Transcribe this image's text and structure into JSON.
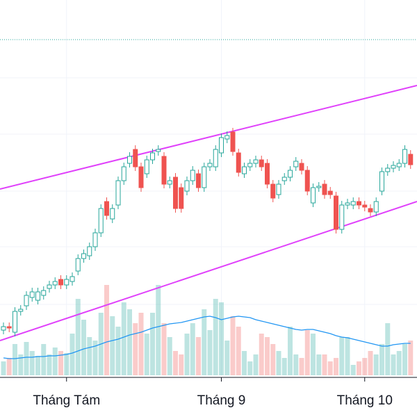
{
  "chart_data": {
    "type": "candlestick",
    "categories": [
      null,
      null,
      null,
      null,
      null,
      null,
      null,
      null,
      null,
      null,
      null,
      "Tháng Tám",
      null,
      null,
      null,
      null,
      null,
      null,
      null,
      null,
      null,
      null,
      null,
      null,
      null,
      null,
      null,
      null,
      null,
      null,
      null,
      null,
      null,
      null,
      null,
      null,
      null,
      null,
      "Tháng 9",
      null,
      null,
      null,
      null,
      null,
      null,
      null,
      null,
      null,
      null,
      null,
      null,
      null,
      null,
      null,
      null,
      null,
      null,
      null,
      null,
      null,
      null,
      null,
      null,
      "Tháng 10",
      null,
      null,
      null,
      null,
      null,
      null,
      null,
      null
    ],
    "open": [
      65,
      70,
      62,
      92,
      100,
      112,
      108,
      115,
      125,
      130,
      138,
      130,
      135,
      150,
      168,
      172,
      185,
      205,
      250,
      225,
      245,
      280,
      305,
      325,
      300,
      290,
      310,
      322,
      315,
      275,
      285,
      270,
      265,
      280,
      290,
      270,
      300,
      300,
      320,
      340,
      350,
      320,
      290,
      300,
      305,
      310,
      305,
      275,
      260,
      280,
      285,
      300,
      305,
      295,
      248,
      270,
      275,
      265,
      258,
      210,
      245,
      245,
      250,
      245,
      240,
      235,
      265,
      293,
      298,
      300,
      305,
      318
    ],
    "close": [
      70,
      68,
      92,
      95,
      115,
      120,
      120,
      122,
      130,
      135,
      130,
      138,
      142,
      168,
      175,
      185,
      205,
      240,
      230,
      240,
      280,
      300,
      315,
      300,
      270,
      310,
      320,
      325,
      275,
      280,
      240,
      240,
      280,
      295,
      270,
      300,
      305,
      325,
      342,
      345,
      322,
      292,
      300,
      305,
      310,
      300,
      275,
      255,
      275,
      285,
      295,
      308,
      295,
      265,
      270,
      272,
      260,
      260,
      210,
      245,
      248,
      250,
      245,
      242,
      235,
      250,
      293,
      298,
      302,
      305,
      325,
      303
    ],
    "high": [
      76,
      76,
      98,
      101,
      121,
      126,
      126,
      128,
      136,
      141,
      144,
      144,
      148,
      174,
      181,
      191,
      211,
      246,
      256,
      246,
      286,
      306,
      321,
      331,
      306,
      316,
      326,
      331,
      321,
      286,
      291,
      276,
      286,
      301,
      296,
      306,
      311,
      331,
      348,
      351,
      356,
      326,
      306,
      311,
      316,
      316,
      311,
      281,
      281,
      291,
      301,
      314,
      311,
      301,
      276,
      278,
      281,
      271,
      264,
      251,
      254,
      256,
      256,
      251,
      246,
      256,
      299,
      304,
      308,
      311,
      331,
      324
    ],
    "low": [
      59,
      62,
      56,
      86,
      94,
      106,
      102,
      109,
      119,
      124,
      124,
      124,
      129,
      144,
      162,
      166,
      179,
      199,
      224,
      219,
      239,
      274,
      299,
      294,
      264,
      284,
      304,
      316,
      269,
      269,
      234,
      234,
      259,
      274,
      264,
      264,
      294,
      294,
      314,
      334,
      316,
      286,
      284,
      294,
      299,
      294,
      269,
      249,
      254,
      274,
      279,
      294,
      289,
      259,
      242,
      264,
      254,
      254,
      204,
      204,
      239,
      239,
      239,
      236,
      229,
      229,
      259,
      287,
      292,
      294,
      299,
      297
    ],
    "volume": [
      20,
      25,
      45,
      30,
      48,
      35,
      28,
      45,
      30,
      40,
      35,
      32,
      60,
      110,
      80,
      55,
      50,
      90,
      130,
      85,
      70,
      105,
      95,
      75,
      90,
      60,
      90,
      130,
      75,
      55,
      35,
      30,
      60,
      75,
      55,
      95,
      65,
      110,
      105,
      50,
      85,
      70,
      35,
      20,
      30,
      60,
      55,
      45,
      35,
      25,
      70,
      30,
      25,
      65,
      60,
      30,
      30,
      20,
      25,
      55,
      55,
      15,
      20,
      25,
      35,
      30,
      45,
      75,
      30,
      35,
      45,
      50
    ],
    "volume_ma": [
      25,
      24,
      24,
      25,
      26,
      26,
      27,
      27,
      28,
      28,
      29,
      30,
      32,
      35,
      38,
      40,
      42,
      45,
      48,
      50,
      52,
      55,
      58,
      60,
      62,
      65,
      68,
      70,
      72,
      74,
      75,
      76,
      78,
      80,
      82,
      84,
      85,
      83,
      80,
      82,
      84,
      85,
      84,
      83,
      80,
      78,
      76,
      74,
      72,
      70,
      68,
      66,
      65,
      66,
      66,
      64,
      62,
      60,
      57,
      55,
      54,
      52,
      50,
      48,
      46,
      44,
      42,
      42,
      44,
      45,
      46,
      46
    ],
    "ylim": [
      0,
      540
    ],
    "gridlines": [
      102,
      185,
      265,
      347,
      428
    ],
    "trendlines": [
      {
        "start": 268,
        "end": 417,
        "color": "#e040fb"
      },
      {
        "start": 50,
        "end": 250,
        "color": "#e040fb"
      }
    ],
    "level": {
      "value": 483,
      "color": "#26a69a"
    },
    "up_color": "#26a69a",
    "down_color": "#ef5350",
    "ma_color": "#2196f3"
  }
}
